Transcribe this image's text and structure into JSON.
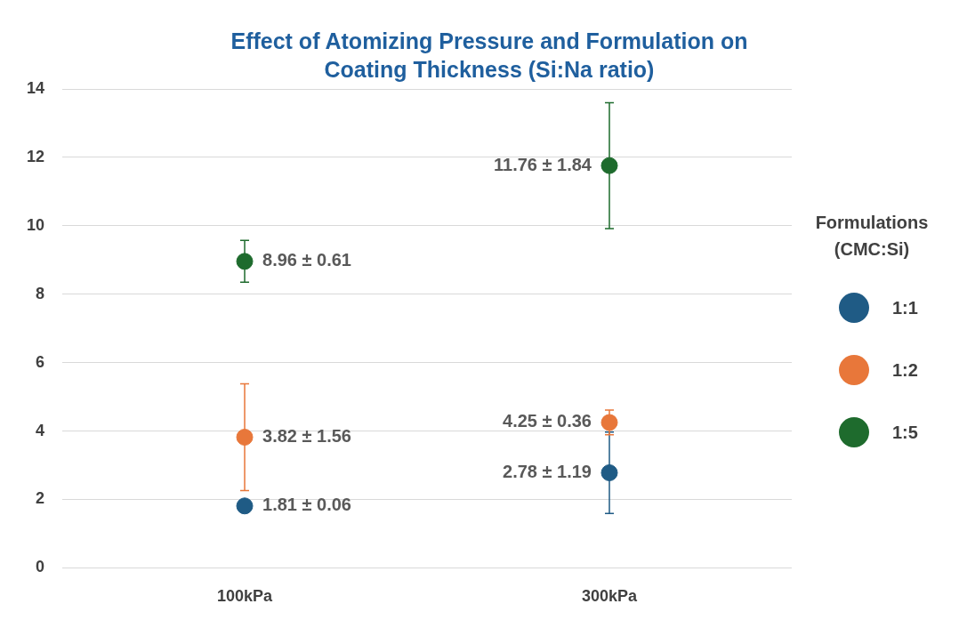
{
  "chart_data": {
    "type": "scatter",
    "title": "Effect of Atomizing Pressure and Formulation on Coating Thickness (Si:Na ratio)",
    "legend_title": "Formulations (CMC:Si)",
    "categories": [
      "100kPa",
      "300kPa"
    ],
    "ylim": [
      0,
      14
    ],
    "yticks": [
      0,
      2,
      4,
      6,
      8,
      10,
      12,
      14
    ],
    "grid": "y",
    "legend": "right",
    "marker": "circle",
    "series": [
      {
        "name": "1:1",
        "color": "#1f5b85",
        "values": [
          1.81,
          2.78
        ],
        "errors": [
          0.06,
          1.19
        ],
        "value_labels": [
          "1.81 ± 0.06",
          "2.78 ± 1.19"
        ]
      },
      {
        "name": "1:2",
        "color": "#e8773a",
        "values": [
          3.82,
          4.25
        ],
        "errors": [
          1.56,
          0.36
        ],
        "value_labels": [
          "3.82 ± 1.56",
          "4.25 ± 0.36"
        ]
      },
      {
        "name": "1:5",
        "color": "#1e6b2d",
        "values": [
          8.96,
          11.76
        ],
        "errors": [
          0.61,
          1.84
        ],
        "value_labels": [
          "8.96 ± 0.61",
          "11.76 ± 1.84"
        ]
      }
    ]
  }
}
